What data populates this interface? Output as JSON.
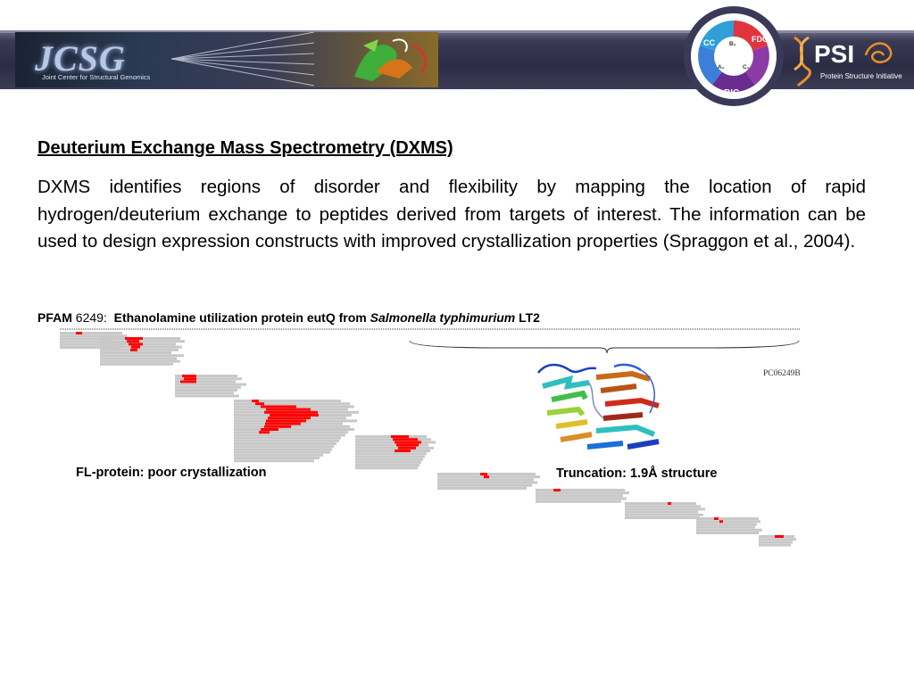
{
  "header": {
    "banner_logo_text": "JCSG",
    "banner_subtitle": "Joint Center for Structural Genomics",
    "badge_labels": [
      "CC",
      "B₁",
      "FDC",
      "A₁",
      "C₁",
      "BIC"
    ],
    "psi_logo_text": "PSI",
    "psi_subtitle": "Protein Structure Initiative"
  },
  "content": {
    "title": "Deuterium Exchange Mass Spectrometry (DXMS)",
    "paragraph": "DXMS identifies regions of disorder and flexibility by mapping the location of rapid hydrogen/deuterium exchange to peptides derived from targets of interest.  The information can be used to design expression constructs with improved crystallization properties (Spraggon et al., 2004).",
    "pfam_prefix": "PFAM",
    "pfam_number": "6249:",
    "pfam_desc": "Ethanolamine utilization protein eutQ from",
    "pfam_species": "Salmonella typhimurium",
    "pfam_strain": "LT2",
    "caption_full": "FL-protein:  poor crystallization",
    "caption_trunc": "Truncation:  1.9Å structure",
    "structure_id": "PC06249B"
  },
  "colors": {
    "header": "#2c2c44",
    "peptide_slow": "#c8c8c8",
    "peptide_fast": "#ff0000"
  }
}
